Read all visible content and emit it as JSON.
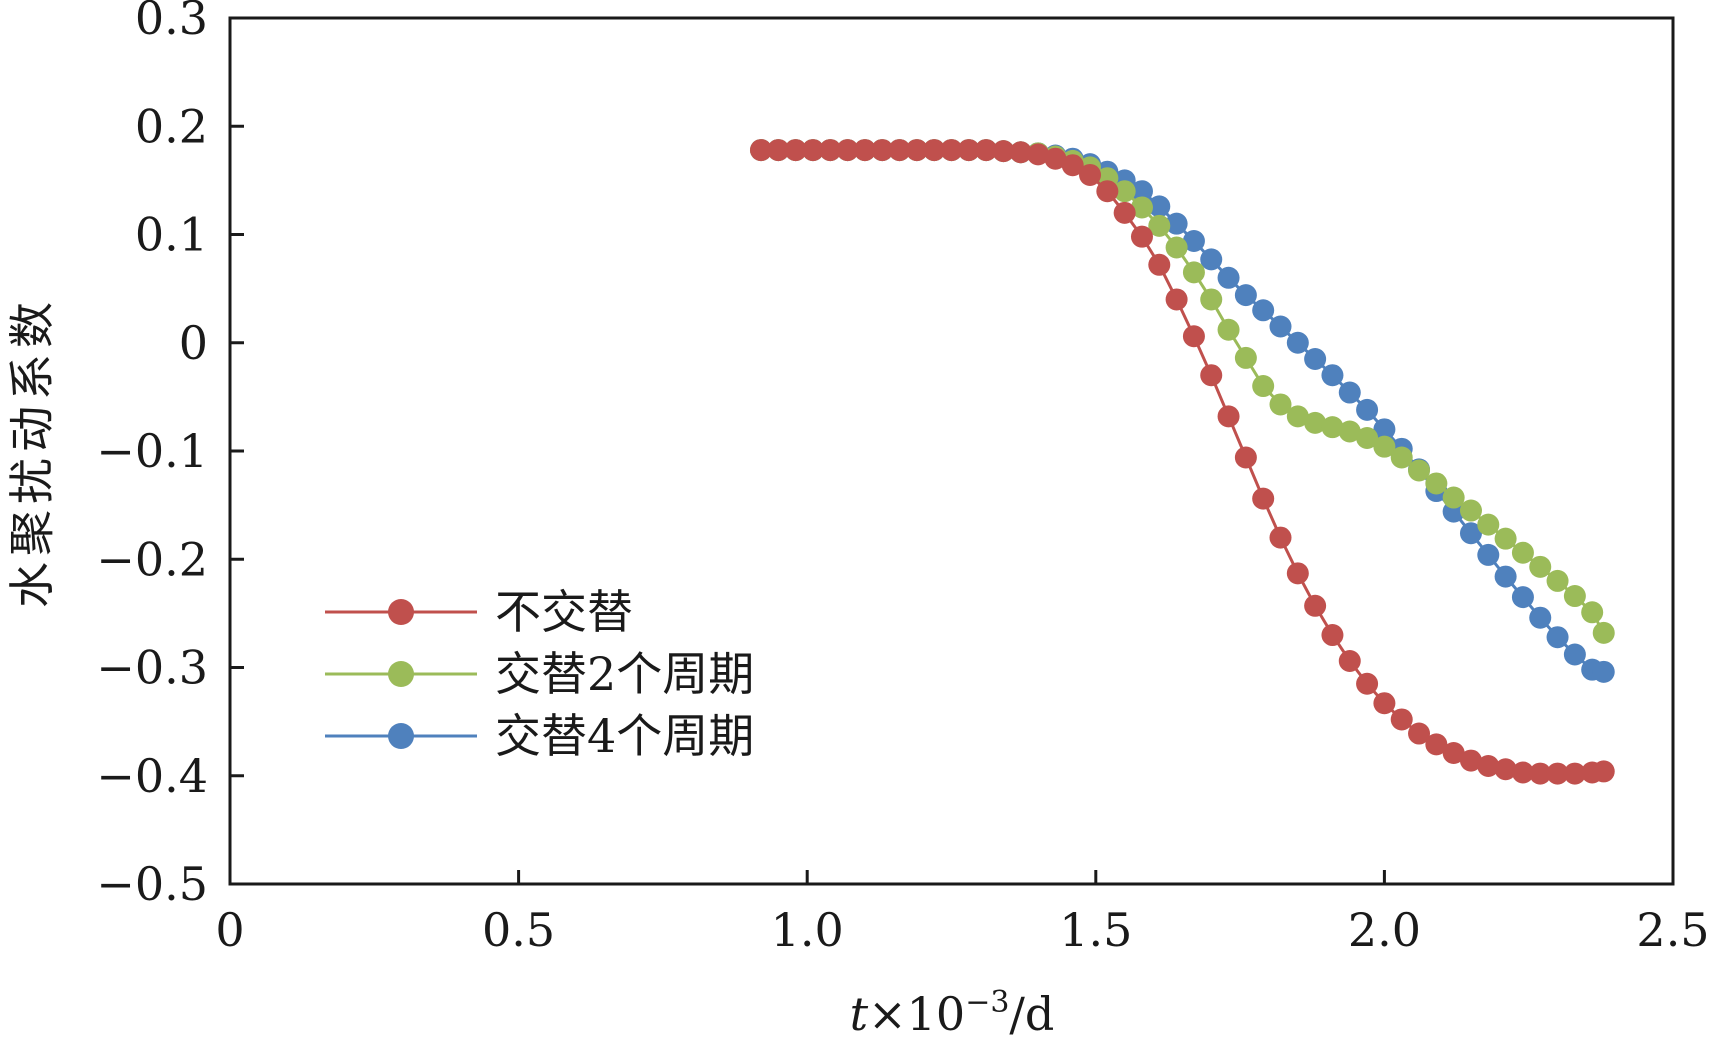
{
  "chart_data": {
    "type": "line",
    "title": "",
    "xlabel_var": "t",
    "xlabel_mult": "×10",
    "xlabel_exp": "−3",
    "xlabel_unit": "/d",
    "ylabel": "水聚扰动系数",
    "xlim": [
      0,
      2.5
    ],
    "ylim": [
      -0.5,
      0.3
    ],
    "x_ticks": [
      0,
      0.5,
      1.0,
      1.5,
      2.0,
      2.5
    ],
    "x_tick_labels": [
      "0",
      "0.5",
      "1.0",
      "1.5",
      "2.0",
      "2.5"
    ],
    "y_ticks": [
      0.3,
      0.2,
      0.1,
      0,
      -0.1,
      -0.2,
      -0.3,
      -0.4,
      -0.5
    ],
    "y_tick_labels": [
      "0.3",
      "0.2",
      "0.1",
      "0",
      "−0.1",
      "−0.2",
      "−0.3",
      "−0.4",
      "−0.5"
    ],
    "legend_position": "lower-left",
    "series": [
      {
        "name": "不交替",
        "color": "#c0504d",
        "points": [
          [
            0.92,
            0.178
          ],
          [
            0.95,
            0.178
          ],
          [
            0.98,
            0.178
          ],
          [
            1.01,
            0.178
          ],
          [
            1.04,
            0.178
          ],
          [
            1.07,
            0.178
          ],
          [
            1.1,
            0.178
          ],
          [
            1.13,
            0.178
          ],
          [
            1.16,
            0.178
          ],
          [
            1.19,
            0.178
          ],
          [
            1.22,
            0.178
          ],
          [
            1.25,
            0.178
          ],
          [
            1.28,
            0.178
          ],
          [
            1.31,
            0.178
          ],
          [
            1.34,
            0.177
          ],
          [
            1.37,
            0.176
          ],
          [
            1.4,
            0.174
          ],
          [
            1.43,
            0.17
          ],
          [
            1.46,
            0.164
          ],
          [
            1.49,
            0.155
          ],
          [
            1.52,
            0.14
          ],
          [
            1.55,
            0.12
          ],
          [
            1.58,
            0.098
          ],
          [
            1.61,
            0.072
          ],
          [
            1.64,
            0.04
          ],
          [
            1.67,
            0.006
          ],
          [
            1.7,
            -0.03
          ],
          [
            1.73,
            -0.068
          ],
          [
            1.76,
            -0.106
          ],
          [
            1.79,
            -0.144
          ],
          [
            1.82,
            -0.18
          ],
          [
            1.85,
            -0.213
          ],
          [
            1.88,
            -0.243
          ],
          [
            1.91,
            -0.27
          ],
          [
            1.94,
            -0.294
          ],
          [
            1.97,
            -0.315
          ],
          [
            2.0,
            -0.333
          ],
          [
            2.03,
            -0.348
          ],
          [
            2.06,
            -0.361
          ],
          [
            2.09,
            -0.371
          ],
          [
            2.12,
            -0.379
          ],
          [
            2.15,
            -0.386
          ],
          [
            2.18,
            -0.391
          ],
          [
            2.21,
            -0.394
          ],
          [
            2.24,
            -0.397
          ],
          [
            2.27,
            -0.398
          ],
          [
            2.3,
            -0.398
          ],
          [
            2.33,
            -0.398
          ],
          [
            2.36,
            -0.397
          ],
          [
            2.38,
            -0.396
          ]
        ]
      },
      {
        "name": "交替2个周期",
        "color": "#9bbb59",
        "points": [
          [
            0.92,
            0.178
          ],
          [
            0.95,
            0.178
          ],
          [
            0.98,
            0.178
          ],
          [
            1.01,
            0.178
          ],
          [
            1.04,
            0.178
          ],
          [
            1.07,
            0.178
          ],
          [
            1.1,
            0.178
          ],
          [
            1.13,
            0.178
          ],
          [
            1.16,
            0.178
          ],
          [
            1.19,
            0.178
          ],
          [
            1.22,
            0.178
          ],
          [
            1.25,
            0.178
          ],
          [
            1.28,
            0.178
          ],
          [
            1.31,
            0.178
          ],
          [
            1.34,
            0.177
          ],
          [
            1.37,
            0.176
          ],
          [
            1.4,
            0.175
          ],
          [
            1.43,
            0.172
          ],
          [
            1.46,
            0.168
          ],
          [
            1.49,
            0.162
          ],
          [
            1.52,
            0.152
          ],
          [
            1.55,
            0.14
          ],
          [
            1.58,
            0.125
          ],
          [
            1.61,
            0.108
          ],
          [
            1.64,
            0.088
          ],
          [
            1.67,
            0.065
          ],
          [
            1.7,
            0.04
          ],
          [
            1.73,
            0.012
          ],
          [
            1.76,
            -0.014
          ],
          [
            1.79,
            -0.04
          ],
          [
            1.82,
            -0.057
          ],
          [
            1.85,
            -0.068
          ],
          [
            1.88,
            -0.074
          ],
          [
            1.91,
            -0.078
          ],
          [
            1.94,
            -0.082
          ],
          [
            1.97,
            -0.088
          ],
          [
            2.0,
            -0.096
          ],
          [
            2.03,
            -0.106
          ],
          [
            2.06,
            -0.118
          ],
          [
            2.09,
            -0.13
          ],
          [
            2.12,
            -0.143
          ],
          [
            2.15,
            -0.155
          ],
          [
            2.18,
            -0.168
          ],
          [
            2.21,
            -0.181
          ],
          [
            2.24,
            -0.194
          ],
          [
            2.27,
            -0.207
          ],
          [
            2.3,
            -0.22
          ],
          [
            2.33,
            -0.234
          ],
          [
            2.36,
            -0.249
          ],
          [
            2.38,
            -0.268
          ]
        ]
      },
      {
        "name": "交替4个周期",
        "color": "#4f81bd",
        "points": [
          [
            0.92,
            0.178
          ],
          [
            0.95,
            0.178
          ],
          [
            0.98,
            0.178
          ],
          [
            1.01,
            0.178
          ],
          [
            1.04,
            0.178
          ],
          [
            1.07,
            0.178
          ],
          [
            1.1,
            0.178
          ],
          [
            1.13,
            0.178
          ],
          [
            1.16,
            0.178
          ],
          [
            1.19,
            0.178
          ],
          [
            1.22,
            0.178
          ],
          [
            1.25,
            0.178
          ],
          [
            1.28,
            0.178
          ],
          [
            1.31,
            0.178
          ],
          [
            1.34,
            0.177
          ],
          [
            1.37,
            0.176
          ],
          [
            1.4,
            0.175
          ],
          [
            1.43,
            0.173
          ],
          [
            1.46,
            0.17
          ],
          [
            1.49,
            0.165
          ],
          [
            1.52,
            0.158
          ],
          [
            1.55,
            0.15
          ],
          [
            1.58,
            0.14
          ],
          [
            1.61,
            0.126
          ],
          [
            1.64,
            0.11
          ],
          [
            1.67,
            0.094
          ],
          [
            1.7,
            0.077
          ],
          [
            1.73,
            0.06
          ],
          [
            1.76,
            0.044
          ],
          [
            1.79,
            0.03
          ],
          [
            1.82,
            0.015
          ],
          [
            1.85,
            0.0
          ],
          [
            1.88,
            -0.015
          ],
          [
            1.91,
            -0.03
          ],
          [
            1.94,
            -0.046
          ],
          [
            1.97,
            -0.062
          ],
          [
            2.0,
            -0.08
          ],
          [
            2.03,
            -0.098
          ],
          [
            2.06,
            -0.117
          ],
          [
            2.09,
            -0.137
          ],
          [
            2.12,
            -0.156
          ],
          [
            2.15,
            -0.176
          ],
          [
            2.18,
            -0.196
          ],
          [
            2.21,
            -0.216
          ],
          [
            2.24,
            -0.235
          ],
          [
            2.27,
            -0.254
          ],
          [
            2.3,
            -0.272
          ],
          [
            2.33,
            -0.288
          ],
          [
            2.36,
            -0.302
          ],
          [
            2.38,
            -0.304
          ]
        ]
      }
    ]
  }
}
